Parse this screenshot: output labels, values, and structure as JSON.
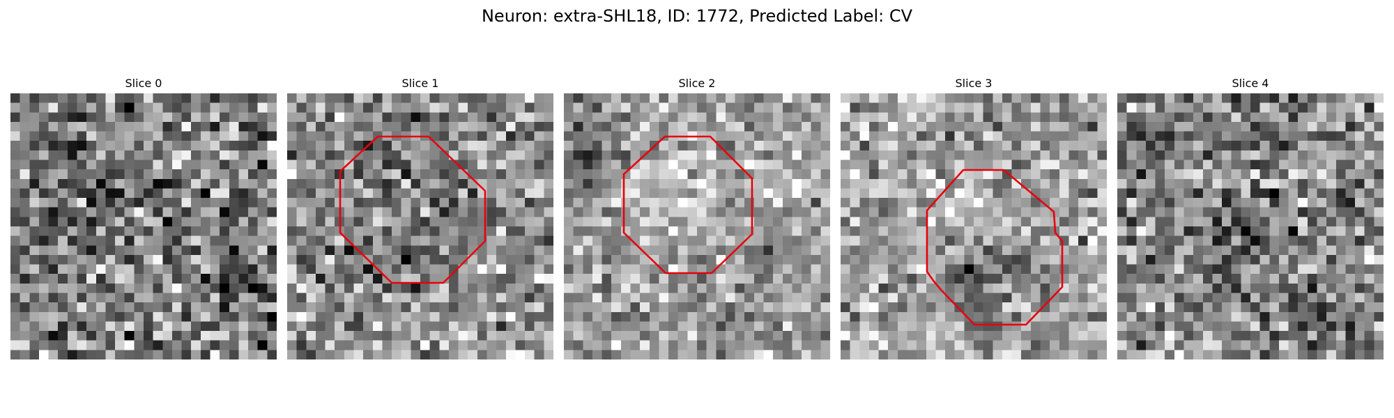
{
  "figure": {
    "title": "Neuron: extra-SHL18, ID: 1772, Predicted Label: CV"
  },
  "panels": [
    {
      "title": "Slice 0",
      "has_roi": false
    },
    {
      "title": "Slice 1",
      "has_roi": true
    },
    {
      "title": "Slice 2",
      "has_roi": true
    },
    {
      "title": "Slice 3",
      "has_roi": true
    },
    {
      "title": "Slice 4",
      "has_roi": false
    }
  ],
  "colors": {
    "background": "#ffffff",
    "roi_outline": "#e8000b",
    "image_colormap": "grayscale"
  }
}
